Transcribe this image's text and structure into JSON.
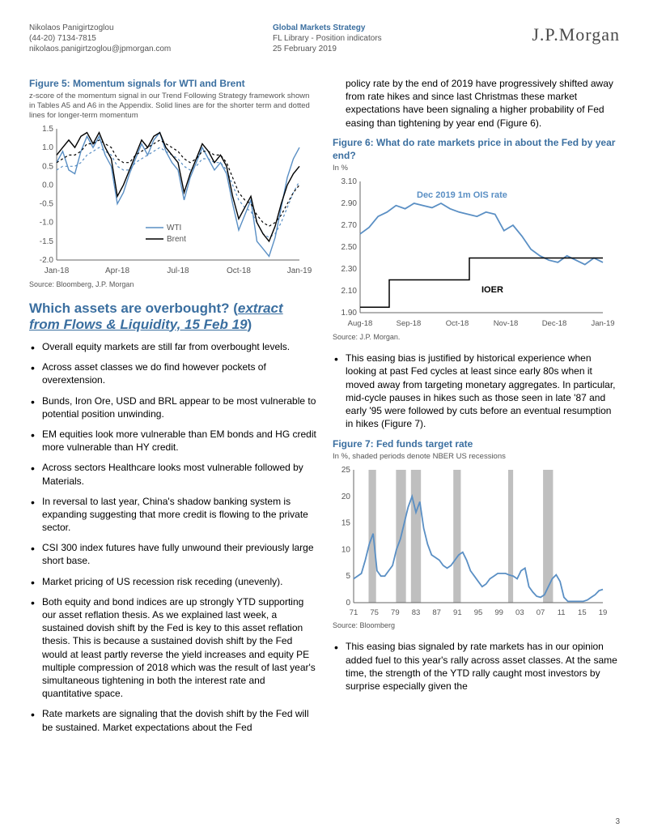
{
  "header": {
    "author_name": "Nikolaos Panigirtzoglou",
    "author_phone": "(44-20) 7134-7815",
    "author_email": "nikolaos.panigirtzoglou@jpmorgan.com",
    "dept": "Global Markets Strategy",
    "sub": "FL Library - Position indicators",
    "date": "25 February 2019",
    "logo": "J.P.Morgan"
  },
  "fig5": {
    "title": "Figure 5: Momentum signals for WTI and Brent",
    "subtitle": "z-score of the momentum signal in our Trend Following Strategy framework shown in Tables A5 and A6 in the Appendix. Solid lines are for the shorter term and dotted lines for longer-term momentum",
    "source": "Source: Bloomberg, J.P. Morgan",
    "ylim": [
      -2.0,
      1.5
    ],
    "ytick_step": 0.5,
    "x_labels": [
      "Jan-18",
      "Apr-18",
      "Jul-18",
      "Oct-18",
      "Jan-19"
    ],
    "legend": [
      {
        "label": "WTI",
        "color": "#5a8fc4"
      },
      {
        "label": "Brent",
        "color": "#000000"
      }
    ],
    "colors": {
      "wti": "#5a8fc4",
      "brent": "#000000",
      "axis": "#666666",
      "text": "#555555"
    },
    "series": {
      "wti_short": [
        0.6,
        0.9,
        0.4,
        0.3,
        0.9,
        1.3,
        1.0,
        1.3,
        0.8,
        0.5,
        -0.5,
        -0.2,
        0.3,
        0.7,
        1.1,
        0.8,
        1.2,
        1.4,
        0.9,
        0.6,
        0.4,
        -0.4,
        0.2,
        0.6,
        1.0,
        0.7,
        0.4,
        0.6,
        0.3,
        -0.5,
        -1.2,
        -0.8,
        -0.4,
        -1.5,
        -1.7,
        -1.9,
        -1.4,
        -0.6,
        0.2,
        0.7,
        1.0
      ],
      "wti_long": [
        0.4,
        0.5,
        0.5,
        0.5,
        0.6,
        0.8,
        0.9,
        1.0,
        0.9,
        0.8,
        0.5,
        0.4,
        0.4,
        0.6,
        0.7,
        0.8,
        0.9,
        1.0,
        0.9,
        0.8,
        0.7,
        0.5,
        0.4,
        0.5,
        0.7,
        0.7,
        0.6,
        0.6,
        0.4,
        0.0,
        -0.4,
        -0.6,
        -0.7,
        -1.0,
        -1.3,
        -1.4,
        -1.3,
        -1.0,
        -0.6,
        -0.2,
        0.1
      ],
      "brent_short": [
        0.8,
        1.0,
        1.2,
        1.0,
        1.3,
        1.4,
        1.1,
        1.4,
        1.0,
        0.7,
        -0.3,
        0.0,
        0.4,
        0.8,
        1.2,
        1.0,
        1.3,
        1.4,
        1.0,
        0.8,
        0.6,
        -0.2,
        0.3,
        0.7,
        1.1,
        0.9,
        0.6,
        0.8,
        0.5,
        -0.3,
        -0.9,
        -0.6,
        -0.3,
        -1.0,
        -1.3,
        -1.5,
        -1.1,
        -0.5,
        0.0,
        0.3,
        0.5
      ],
      "brent_long": [
        0.6,
        0.7,
        0.8,
        0.8,
        0.9,
        1.1,
        1.1,
        1.2,
        1.1,
        1.0,
        0.7,
        0.6,
        0.6,
        0.8,
        0.9,
        1.0,
        1.1,
        1.2,
        1.1,
        1.0,
        0.9,
        0.7,
        0.6,
        0.7,
        0.9,
        0.9,
        0.8,
        0.8,
        0.6,
        0.2,
        -0.2,
        -0.4,
        -0.5,
        -0.8,
        -1.0,
        -1.1,
        -1.0,
        -0.8,
        -0.5,
        -0.2,
        0.0
      ]
    }
  },
  "section": {
    "title_a": "Which assets are overbought? (",
    "title_b": "extract from Flows & Liquidity, 15 Feb 19",
    "title_c": ")"
  },
  "bullets_left": [
    "Overall equity markets are still far from overbought levels.",
    "Across asset classes we do find however pockets of overextension.",
    "Bunds, Iron Ore, USD and BRL appear to be most vulnerable to potential position unwinding.",
    "EM equities look more vulnerable than EM bonds and HG credit more vulnerable than HY credit.",
    "Across sectors Healthcare looks most vulnerable followed by Materials.",
    "In reversal to last year, China's shadow banking system is expanding suggesting that more credit is flowing to the private sector.",
    "CSI 300 index futures have fully unwound their previously large short base.",
    "Market pricing of US recession risk receding (unevenly).",
    "Both equity and bond indices are up strongly YTD supporting our asset reflation thesis. As we explained last week, a sustained dovish shift by the Fed is key to this asset reflation thesis. This is because a sustained dovish shift by the Fed would at least partly reverse the yield increases and equity PE multiple compression of 2018 which was the result of last year's simultaneous tightening in both the interest rate and quantitative space.",
    "Rate markets are signaling that the dovish shift by the Fed will be sustained. Market expectations about the Fed"
  ],
  "right_top_text": "policy rate by the end of 2019 have progressively shifted away from rate hikes and since last Christmas these market expectations have been signaling a higher probability of Fed easing than tightening by year end (Figure 6).",
  "fig6": {
    "title": "Figure 6: What do rate markets price in about the Fed by year end?",
    "subtitle": "In %",
    "source": "Source: J.P. Morgan.",
    "ylim": [
      1.9,
      3.1
    ],
    "ytick_step": 0.2,
    "x_labels": [
      "Aug-18",
      "Sep-18",
      "Oct-18",
      "Nov-18",
      "Dec-18",
      "Jan-19"
    ],
    "label_ois": "Dec 2019 1m OIS rate",
    "label_ioer": "IOER",
    "colors": {
      "ois": "#5a8fc4",
      "ioer": "#000000",
      "axis": "#666666",
      "text": "#555555"
    },
    "series": {
      "ois": [
        2.62,
        2.68,
        2.78,
        2.82,
        2.88,
        2.85,
        2.9,
        2.88,
        2.86,
        2.9,
        2.85,
        2.82,
        2.8,
        2.78,
        2.82,
        2.8,
        2.65,
        2.7,
        2.6,
        2.48,
        2.42,
        2.38,
        2.36,
        2.42,
        2.38,
        2.34,
        2.4,
        2.36
      ],
      "ioer_x": [
        0,
        0.12,
        0.12,
        0.45,
        0.45,
        0.8,
        0.8,
        1.0
      ],
      "ioer_y": [
        1.95,
        1.95,
        2.2,
        2.2,
        2.4,
        2.4,
        2.4,
        2.4
      ]
    }
  },
  "bullets_right_mid": [
    "This easing bias is justified by historical experience when looking at past Fed cycles at least since early 80s when it moved away from targeting monetary aggregates. In particular, mid-cycle pauses in hikes such as those seen in late '87 and early '95 were followed by cuts before an eventual resumption in hikes (Figure 7)."
  ],
  "fig7": {
    "title": "Figure 7: Fed funds target rate",
    "subtitle": "In %, shaded periods denote NBER US recessions",
    "source": "Source: Bloomberg",
    "ylim": [
      0,
      25
    ],
    "ytick_step": 5,
    "x_labels": [
      "71",
      "75",
      "79",
      "83",
      "87",
      "91",
      "95",
      "99",
      "03",
      "07",
      "11",
      "15",
      "19"
    ],
    "colors": {
      "line": "#5a8fc4",
      "band": "#bfbfbf",
      "axis": "#666666",
      "text": "#555555"
    },
    "recessions": [
      {
        "start": 0.06,
        "end": 0.09
      },
      {
        "start": 0.17,
        "end": 0.21
      },
      {
        "start": 0.23,
        "end": 0.27
      },
      {
        "start": 0.4,
        "end": 0.43
      },
      {
        "start": 0.62,
        "end": 0.64
      },
      {
        "start": 0.76,
        "end": 0.8
      }
    ],
    "series": {
      "ff": [
        4.5,
        5,
        5.5,
        8,
        11,
        13,
        6,
        5,
        5,
        6,
        7,
        10,
        12,
        15,
        18,
        20,
        17,
        19,
        14,
        11,
        9,
        8.5,
        8,
        7,
        6.5,
        7,
        8,
        9,
        9.5,
        8,
        6,
        5,
        4,
        3,
        3.5,
        4.5,
        5,
        5.5,
        5.5,
        5.5,
        5.2,
        5,
        4.5,
        6,
        6.5,
        3,
        2,
        1.2,
        1,
        1.5,
        3,
        4.5,
        5.25,
        4,
        1,
        0.25,
        0.25,
        0.25,
        0.25,
        0.25,
        0.5,
        1,
        1.5,
        2.25,
        2.5
      ]
    }
  },
  "bullets_right_bottom": [
    "This easing bias signaled by rate markets has in our opinion added fuel to this year's rally across asset classes. At the same time, the strength of the YTD rally caught most investors by surprise especially given the"
  ],
  "page_number": "3"
}
